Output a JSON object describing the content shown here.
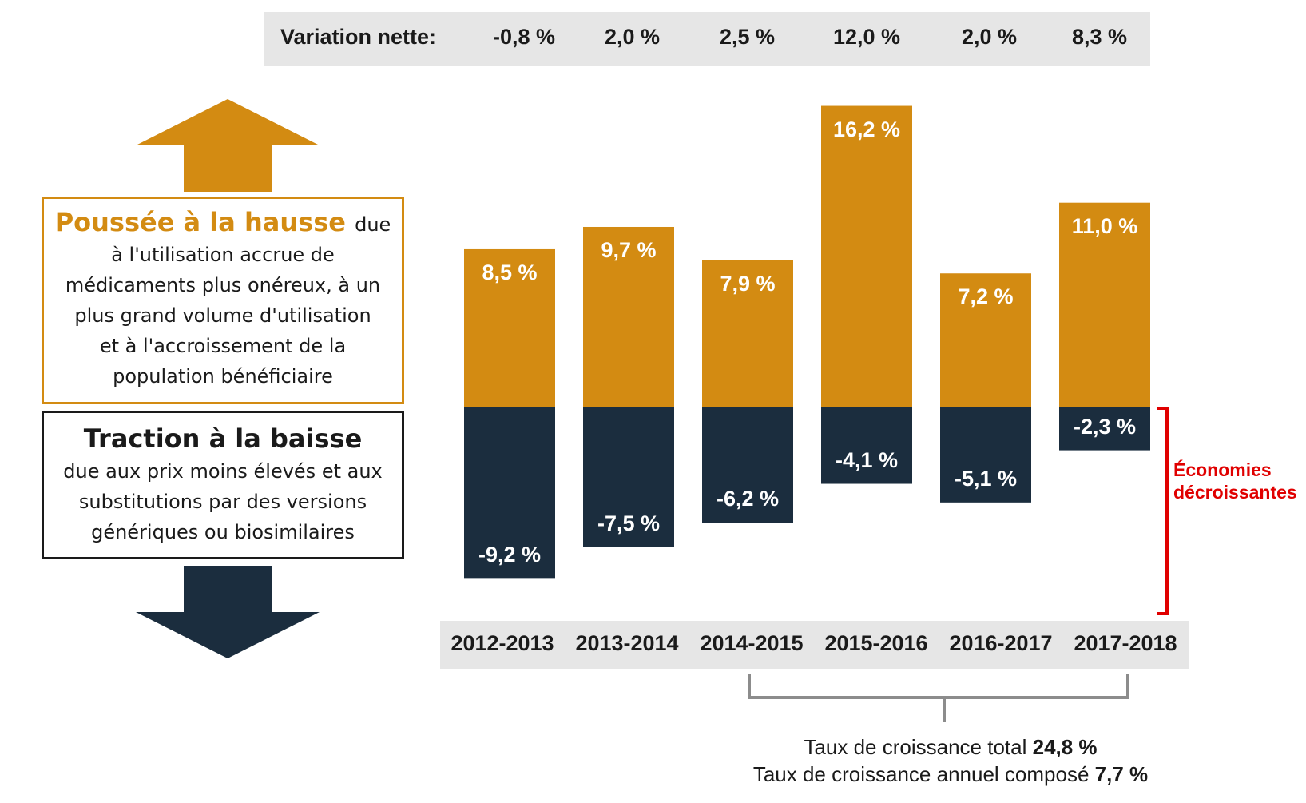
{
  "net_variation": {
    "label": "Variation nette:",
    "values": [
      "-0,8 %",
      "2,0 %",
      "2,5 %",
      "12,0 %",
      "2,0 %",
      "8,3 %"
    ]
  },
  "upward_box": {
    "title": "Poussée à la hausse",
    "text_lines": [
      "due",
      "à l'utilisation accrue de",
      "médicaments plus onéreux, à un",
      "plus grand volume d'utilisation",
      "et à l'accroissement de la",
      "population bénéficiaire"
    ]
  },
  "downward_box": {
    "title": "Traction à la baisse",
    "text_lines": [
      "due aux prix moins élevés et aux",
      "substitutions par des versions",
      "génériques ou biosimilaires"
    ]
  },
  "savings_label": [
    "Économies",
    "décroissantes"
  ],
  "growth": {
    "total_label": "Taux de croissance total",
    "total_value": "24,8 %",
    "cagr_label": "Taux de croissance annuel composé",
    "cagr_value": "7,7 %"
  },
  "colors": {
    "upward": "#d38b12",
    "downward": "#1b2d3e",
    "accent_red": "#e00000",
    "band": "#e6e6e6"
  },
  "chart_data": {
    "type": "bar",
    "categories": [
      "2012-2013",
      "2013-2014",
      "2014-2015",
      "2015-2016",
      "2016-2017",
      "2017-2018"
    ],
    "series": [
      {
        "name": "Poussée à la hausse",
        "values": [
          8.5,
          9.7,
          7.9,
          16.2,
          7.2,
          11.0
        ],
        "labels": [
          "8,5 %",
          "9,7 %",
          "7,9 %",
          "16,2 %",
          "7,2 %",
          "11,0 %"
        ]
      },
      {
        "name": "Traction à la baisse",
        "values": [
          -9.2,
          -7.5,
          -6.2,
          -4.1,
          -5.1,
          -2.3
        ],
        "labels": [
          "-9,2 %",
          "-7,5 %",
          "-6,2 %",
          "-4,1 %",
          "-5,1 %",
          "-2,3 %"
        ]
      }
    ],
    "ylim": [
      -10,
      17
    ],
    "title": "",
    "xlabel": "",
    "ylabel": ""
  }
}
